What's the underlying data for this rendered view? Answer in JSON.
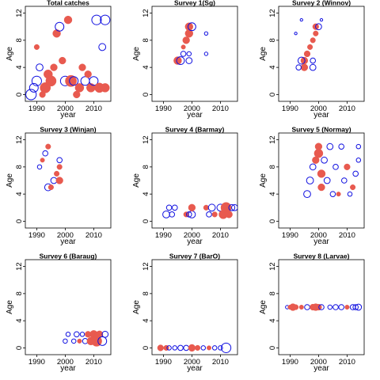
{
  "chart_data": [
    {
      "type": "scatter",
      "title": "Total catches",
      "xlabel": "year",
      "ylabel": "Age",
      "xlim": [
        1986,
        2016
      ],
      "ylim": [
        -1,
        13
      ],
      "xticks": [
        1990,
        2000,
        2010
      ],
      "yticks": [
        0,
        4,
        8,
        12
      ],
      "encoding": "bubble size = residual magnitude; red filled = positive, blue open = negative",
      "points": [
        {
          "x": 1988,
          "y": 0,
          "size": 1.2,
          "sign": "neg"
        },
        {
          "x": 1989,
          "y": 1,
          "size": 1.0,
          "sign": "neg"
        },
        {
          "x": 1990,
          "y": 2,
          "size": 1.1,
          "sign": "neg"
        },
        {
          "x": 1991,
          "y": 4,
          "size": 0.8,
          "sign": "neg"
        },
        {
          "x": 1990,
          "y": 7,
          "size": 0.6,
          "sign": "pos"
        },
        {
          "x": 1992,
          "y": 0,
          "size": 0.7,
          "sign": "pos"
        },
        {
          "x": 1993,
          "y": 1,
          "size": 1.2,
          "sign": "pos"
        },
        {
          "x": 1994,
          "y": 3,
          "size": 1.0,
          "sign": "pos"
        },
        {
          "x": 1995,
          "y": 2,
          "size": 1.2,
          "sign": "pos"
        },
        {
          "x": 1996,
          "y": 4,
          "size": 0.8,
          "sign": "pos"
        },
        {
          "x": 1997,
          "y": 9,
          "size": 0.9,
          "sign": "pos"
        },
        {
          "x": 1998,
          "y": 10,
          "size": 1.0,
          "sign": "neg"
        },
        {
          "x": 1999,
          "y": 5,
          "size": 0.8,
          "sign": "pos"
        },
        {
          "x": 2000,
          "y": 2,
          "size": 1.1,
          "sign": "neg"
        },
        {
          "x": 2001,
          "y": 11,
          "size": 0.9,
          "sign": "pos"
        },
        {
          "x": 2002,
          "y": 2,
          "size": 1.3,
          "sign": "pos"
        },
        {
          "x": 2003,
          "y": 2,
          "size": 1.0,
          "sign": "neg"
        },
        {
          "x": 2004,
          "y": 0,
          "size": 0.8,
          "sign": "pos"
        },
        {
          "x": 2005,
          "y": 1,
          "size": 1.0,
          "sign": "pos"
        },
        {
          "x": 2006,
          "y": 4,
          "size": 0.8,
          "sign": "pos"
        },
        {
          "x": 2007,
          "y": 2,
          "size": 1.0,
          "sign": "neg"
        },
        {
          "x": 2008,
          "y": 3,
          "size": 0.8,
          "sign": "pos"
        },
        {
          "x": 2009,
          "y": 1,
          "size": 1.0,
          "sign": "pos"
        },
        {
          "x": 2010,
          "y": 2,
          "size": 1.0,
          "sign": "neg"
        },
        {
          "x": 2011,
          "y": 11,
          "size": 1.1,
          "sign": "neg"
        },
        {
          "x": 2012,
          "y": 1,
          "size": 1.1,
          "sign": "pos"
        },
        {
          "x": 2013,
          "y": 7,
          "size": 0.8,
          "sign": "neg"
        },
        {
          "x": 2014,
          "y": 1,
          "size": 1.0,
          "sign": "pos"
        },
        {
          "x": 2014,
          "y": 11,
          "size": 1.1,
          "sign": "neg"
        }
      ]
    },
    {
      "type": "scatter",
      "title": "Survey 1(Sg)",
      "xlabel": "year",
      "ylabel": "Age",
      "xlim": [
        1986,
        2016
      ],
      "ylim": [
        -1,
        13
      ],
      "xticks": [
        1990,
        2000,
        2010
      ],
      "yticks": [
        0,
        4,
        8,
        12
      ],
      "points": [
        {
          "x": 1999,
          "y": 10,
          "size": 0.9,
          "sign": "pos"
        },
        {
          "x": 1999,
          "y": 9,
          "size": 0.9,
          "sign": "pos"
        },
        {
          "x": 1998,
          "y": 8,
          "size": 0.8,
          "sign": "pos"
        },
        {
          "x": 1997,
          "y": 7,
          "size": 0.5,
          "sign": "pos"
        },
        {
          "x": 1997,
          "y": 6,
          "size": 0.6,
          "sign": "neg"
        },
        {
          "x": 1999,
          "y": 6,
          "size": 0.5,
          "sign": "neg"
        },
        {
          "x": 1995,
          "y": 5,
          "size": 0.9,
          "sign": "pos"
        },
        {
          "x": 1996,
          "y": 5,
          "size": 0.9,
          "sign": "neg"
        },
        {
          "x": 1999,
          "y": 5,
          "size": 0.7,
          "sign": "neg"
        },
        {
          "x": 2000,
          "y": 10,
          "size": 0.9,
          "sign": "neg"
        },
        {
          "x": 2005,
          "y": 9,
          "size": 0.4,
          "sign": "neg"
        },
        {
          "x": 2005,
          "y": 6,
          "size": 0.4,
          "sign": "neg"
        }
      ]
    },
    {
      "type": "scatter",
      "title": "Survey 2 (Winnov)",
      "xlabel": "year",
      "ylabel": "Age",
      "xlim": [
        1986,
        2016
      ],
      "ylim": [
        -1,
        13
      ],
      "xticks": [
        1990,
        2000,
        2010
      ],
      "yticks": [
        0,
        4,
        8,
        12
      ],
      "points": [
        {
          "x": 1999,
          "y": 10,
          "size": 0.7,
          "sign": "pos"
        },
        {
          "x": 2000,
          "y": 10,
          "size": 0.7,
          "sign": "neg"
        },
        {
          "x": 1999,
          "y": 9,
          "size": 0.6,
          "sign": "pos"
        },
        {
          "x": 1998,
          "y": 8,
          "size": 0.6,
          "sign": "pos"
        },
        {
          "x": 1997,
          "y": 7,
          "size": 0.6,
          "sign": "pos"
        },
        {
          "x": 1996,
          "y": 6,
          "size": 0.7,
          "sign": "pos"
        },
        {
          "x": 1995,
          "y": 5,
          "size": 0.8,
          "sign": "pos"
        },
        {
          "x": 1994,
          "y": 5,
          "size": 0.8,
          "sign": "neg"
        },
        {
          "x": 1998,
          "y": 5,
          "size": 0.6,
          "sign": "neg"
        },
        {
          "x": 1995,
          "y": 4,
          "size": 0.8,
          "sign": "pos"
        },
        {
          "x": 1993,
          "y": 4,
          "size": 0.6,
          "sign": "neg"
        },
        {
          "x": 1998,
          "y": 4,
          "size": 0.7,
          "sign": "neg"
        },
        {
          "x": 1992,
          "y": 9,
          "size": 0.3,
          "sign": "neg"
        },
        {
          "x": 1994,
          "y": 11,
          "size": 0.3,
          "sign": "neg"
        },
        {
          "x": 2001,
          "y": 11,
          "size": 0.3,
          "sign": "neg"
        }
      ]
    },
    {
      "type": "scatter",
      "title": "Survey 3 (Winjan)",
      "xlabel": "year",
      "ylabel": "Age",
      "xlim": [
        1986,
        2016
      ],
      "ylim": [
        -1,
        13
      ],
      "xticks": [
        1990,
        2000,
        2010
      ],
      "yticks": [
        0,
        4,
        8,
        12
      ],
      "points": [
        {
          "x": 1994,
          "y": 11,
          "size": 0.6,
          "sign": "pos"
        },
        {
          "x": 1993,
          "y": 10,
          "size": 0.6,
          "sign": "neg"
        },
        {
          "x": 1992,
          "y": 9,
          "size": 0.5,
          "sign": "pos"
        },
        {
          "x": 1991,
          "y": 8,
          "size": 0.5,
          "sign": "neg"
        },
        {
          "x": 1998,
          "y": 8,
          "size": 0.6,
          "sign": "pos"
        },
        {
          "x": 1998,
          "y": 9,
          "size": 0.6,
          "sign": "neg"
        },
        {
          "x": 1997,
          "y": 7,
          "size": 0.6,
          "sign": "pos"
        },
        {
          "x": 1996,
          "y": 6,
          "size": 0.7,
          "sign": "neg"
        },
        {
          "x": 1998,
          "y": 6,
          "size": 0.8,
          "sign": "pos"
        },
        {
          "x": 1994,
          "y": 5,
          "size": 0.8,
          "sign": "neg"
        },
        {
          "x": 1995,
          "y": 5,
          "size": 0.6,
          "sign": "pos"
        }
      ]
    },
    {
      "type": "scatter",
      "title": "Survey 4 (Barmay)",
      "xlabel": "year",
      "ylabel": "Age",
      "xlim": [
        1986,
        2016
      ],
      "ylim": [
        -1,
        13
      ],
      "xticks": [
        1990,
        2000,
        2010
      ],
      "yticks": [
        0,
        4,
        8,
        12
      ],
      "points": [
        {
          "x": 1991,
          "y": 1,
          "size": 0.8,
          "sign": "neg"
        },
        {
          "x": 1992,
          "y": 2,
          "size": 0.6,
          "sign": "neg"
        },
        {
          "x": 1993,
          "y": 1,
          "size": 0.6,
          "sign": "neg"
        },
        {
          "x": 1994,
          "y": 2,
          "size": 0.6,
          "sign": "neg"
        },
        {
          "x": 1998,
          "y": 1,
          "size": 0.6,
          "sign": "pos"
        },
        {
          "x": 1999,
          "y": 1,
          "size": 0.6,
          "sign": "neg"
        },
        {
          "x": 2000,
          "y": 1,
          "size": 0.8,
          "sign": "neg"
        },
        {
          "x": 2000,
          "y": 2,
          "size": 0.8,
          "sign": "pos"
        },
        {
          "x": 2005,
          "y": 2,
          "size": 0.6,
          "sign": "pos"
        },
        {
          "x": 2006,
          "y": 1,
          "size": 0.6,
          "sign": "neg"
        },
        {
          "x": 2007,
          "y": 2,
          "size": 0.8,
          "sign": "neg"
        },
        {
          "x": 2008,
          "y": 1,
          "size": 0.6,
          "sign": "pos"
        },
        {
          "x": 2010,
          "y": 2,
          "size": 0.8,
          "sign": "neg"
        },
        {
          "x": 2011,
          "y": 1,
          "size": 1.0,
          "sign": "pos"
        },
        {
          "x": 2012,
          "y": 2,
          "size": 1.2,
          "sign": "pos"
        },
        {
          "x": 2013,
          "y": 1,
          "size": 0.8,
          "sign": "pos"
        },
        {
          "x": 2014,
          "y": 2,
          "size": 0.7,
          "sign": "neg"
        },
        {
          "x": 2015,
          "y": 2,
          "size": 0.7,
          "sign": "neg"
        }
      ]
    },
    {
      "type": "scatter",
      "title": "Survey 5 (Normay)",
      "xlabel": "year",
      "ylabel": "Age",
      "xlim": [
        1986,
        2016
      ],
      "ylim": [
        -1,
        13
      ],
      "xticks": [
        1990,
        2000,
        2010
      ],
      "yticks": [
        0,
        4,
        8,
        12
      ],
      "points": [
        {
          "x": 1996,
          "y": 4,
          "size": 0.8,
          "sign": "neg"
        },
        {
          "x": 1997,
          "y": 6,
          "size": 0.8,
          "sign": "neg"
        },
        {
          "x": 1998,
          "y": 8,
          "size": 0.7,
          "sign": "neg"
        },
        {
          "x": 1999,
          "y": 9,
          "size": 0.8,
          "sign": "pos"
        },
        {
          "x": 2000,
          "y": 10,
          "size": 1.0,
          "sign": "pos"
        },
        {
          "x": 2000,
          "y": 11,
          "size": 0.8,
          "sign": "pos"
        },
        {
          "x": 2001,
          "y": 7,
          "size": 0.9,
          "sign": "pos"
        },
        {
          "x": 2001,
          "y": 5,
          "size": 0.8,
          "sign": "pos"
        },
        {
          "x": 2002,
          "y": 9,
          "size": 0.7,
          "sign": "neg"
        },
        {
          "x": 2003,
          "y": 6,
          "size": 0.7,
          "sign": "neg"
        },
        {
          "x": 2004,
          "y": 11,
          "size": 0.7,
          "sign": "neg"
        },
        {
          "x": 2005,
          "y": 4,
          "size": 0.6,
          "sign": "neg"
        },
        {
          "x": 2006,
          "y": 8,
          "size": 0.6,
          "sign": "neg"
        },
        {
          "x": 2007,
          "y": 4,
          "size": 0.5,
          "sign": "pos"
        },
        {
          "x": 2008,
          "y": 11,
          "size": 0.6,
          "sign": "neg"
        },
        {
          "x": 2009,
          "y": 6,
          "size": 0.6,
          "sign": "neg"
        },
        {
          "x": 2010,
          "y": 8,
          "size": 0.7,
          "sign": "pos"
        },
        {
          "x": 2011,
          "y": 4,
          "size": 0.5,
          "sign": "neg"
        },
        {
          "x": 2012,
          "y": 5,
          "size": 0.6,
          "sign": "pos"
        },
        {
          "x": 2013,
          "y": 7,
          "size": 0.6,
          "sign": "neg"
        },
        {
          "x": 2014,
          "y": 9,
          "size": 0.5,
          "sign": "neg"
        },
        {
          "x": 2014,
          "y": 11,
          "size": 0.5,
          "sign": "neg"
        }
      ]
    },
    {
      "type": "scatter",
      "title": "Survey 6 (Baraug)",
      "xlabel": "year",
      "ylabel": "Age",
      "xlim": [
        1986,
        2016
      ],
      "ylim": [
        -1,
        13
      ],
      "xticks": [
        1990,
        2000,
        2010
      ],
      "yticks": [
        0,
        4,
        8,
        12
      ],
      "points": [
        {
          "x": 2000,
          "y": 1,
          "size": 0.5,
          "sign": "neg"
        },
        {
          "x": 2001,
          "y": 2,
          "size": 0.5,
          "sign": "neg"
        },
        {
          "x": 2003,
          "y": 1,
          "size": 0.5,
          "sign": "neg"
        },
        {
          "x": 2004,
          "y": 2,
          "size": 0.6,
          "sign": "neg"
        },
        {
          "x": 2005,
          "y": 1,
          "size": 0.5,
          "sign": "pos"
        },
        {
          "x": 2006,
          "y": 2,
          "size": 0.5,
          "sign": "neg"
        },
        {
          "x": 2007,
          "y": 1,
          "size": 0.6,
          "sign": "neg"
        },
        {
          "x": 2008,
          "y": 2,
          "size": 0.7,
          "sign": "pos"
        },
        {
          "x": 2009,
          "y": 1,
          "size": 0.9,
          "sign": "pos"
        },
        {
          "x": 2010,
          "y": 2,
          "size": 0.9,
          "sign": "pos"
        },
        {
          "x": 2011,
          "y": 1,
          "size": 1.2,
          "sign": "pos"
        },
        {
          "x": 2012,
          "y": 2,
          "size": 0.8,
          "sign": "pos"
        },
        {
          "x": 2013,
          "y": 1,
          "size": 1.0,
          "sign": "neg"
        },
        {
          "x": 2014,
          "y": 2,
          "size": 0.7,
          "sign": "neg"
        }
      ]
    },
    {
      "type": "scatter",
      "title": "Survey 7 (BarO)",
      "xlabel": "year",
      "ylabel": "Age",
      "xlim": [
        1986,
        2016
      ],
      "ylim": [
        -1,
        13
      ],
      "xticks": [
        1990,
        2000,
        2010
      ],
      "yticks": [
        0,
        4,
        8,
        12
      ],
      "points": [
        {
          "x": 1989,
          "y": 0,
          "size": 0.7,
          "sign": "pos"
        },
        {
          "x": 1991,
          "y": 0,
          "size": 0.6,
          "sign": "pos"
        },
        {
          "x": 1992,
          "y": 0,
          "size": 0.5,
          "sign": "neg"
        },
        {
          "x": 1994,
          "y": 0,
          "size": 0.5,
          "sign": "neg"
        },
        {
          "x": 1996,
          "y": 0,
          "size": 0.6,
          "sign": "neg"
        },
        {
          "x": 1998,
          "y": 0,
          "size": 0.6,
          "sign": "neg"
        },
        {
          "x": 2000,
          "y": 0,
          "size": 0.8,
          "sign": "pos"
        },
        {
          "x": 2002,
          "y": 0,
          "size": 0.6,
          "sign": "pos"
        },
        {
          "x": 2004,
          "y": 0,
          "size": 0.5,
          "sign": "neg"
        },
        {
          "x": 2006,
          "y": 0,
          "size": 0.5,
          "sign": "pos"
        },
        {
          "x": 2008,
          "y": 0,
          "size": 0.5,
          "sign": "neg"
        },
        {
          "x": 2010,
          "y": 0,
          "size": 0.5,
          "sign": "neg"
        },
        {
          "x": 2012,
          "y": 0,
          "size": 1.1,
          "sign": "neg"
        }
      ]
    },
    {
      "type": "scatter",
      "title": "Survey 8 (Larvae)",
      "xlabel": "year",
      "ylabel": "Age",
      "xlim": [
        1986,
        2016
      ],
      "ylim": [
        -1,
        13
      ],
      "xticks": [
        1990,
        2000,
        2010
      ],
      "yticks": [
        0,
        4,
        8,
        12
      ],
      "points": [
        {
          "x": 1989,
          "y": 6,
          "size": 0.4,
          "sign": "neg"
        },
        {
          "x": 1990,
          "y": 6,
          "size": 0.5,
          "sign": "pos"
        },
        {
          "x": 1991,
          "y": 6,
          "size": 0.8,
          "sign": "pos"
        },
        {
          "x": 1992,
          "y": 6,
          "size": 0.6,
          "sign": "pos"
        },
        {
          "x": 1994,
          "y": 6,
          "size": 0.5,
          "sign": "pos"
        },
        {
          "x": 1996,
          "y": 6,
          "size": 0.6,
          "sign": "neg"
        },
        {
          "x": 1998,
          "y": 6,
          "size": 0.7,
          "sign": "pos"
        },
        {
          "x": 1999,
          "y": 6,
          "size": 0.8,
          "sign": "pos"
        },
        {
          "x": 2000,
          "y": 6,
          "size": 0.7,
          "sign": "pos"
        },
        {
          "x": 2001,
          "y": 6,
          "size": 0.6,
          "sign": "neg"
        },
        {
          "x": 2004,
          "y": 6,
          "size": 0.5,
          "sign": "neg"
        },
        {
          "x": 2006,
          "y": 6,
          "size": 0.6,
          "sign": "neg"
        },
        {
          "x": 2008,
          "y": 6,
          "size": 0.6,
          "sign": "neg"
        },
        {
          "x": 2010,
          "y": 6,
          "size": 0.5,
          "sign": "pos"
        },
        {
          "x": 2012,
          "y": 6,
          "size": 0.6,
          "sign": "neg"
        },
        {
          "x": 2013,
          "y": 6,
          "size": 0.6,
          "sign": "neg"
        },
        {
          "x": 2014,
          "y": 6,
          "size": 0.7,
          "sign": "neg"
        }
      ]
    }
  ],
  "colors": {
    "positive": "#e85a4f",
    "negative": "#1010e0",
    "axis": "#000000"
  }
}
